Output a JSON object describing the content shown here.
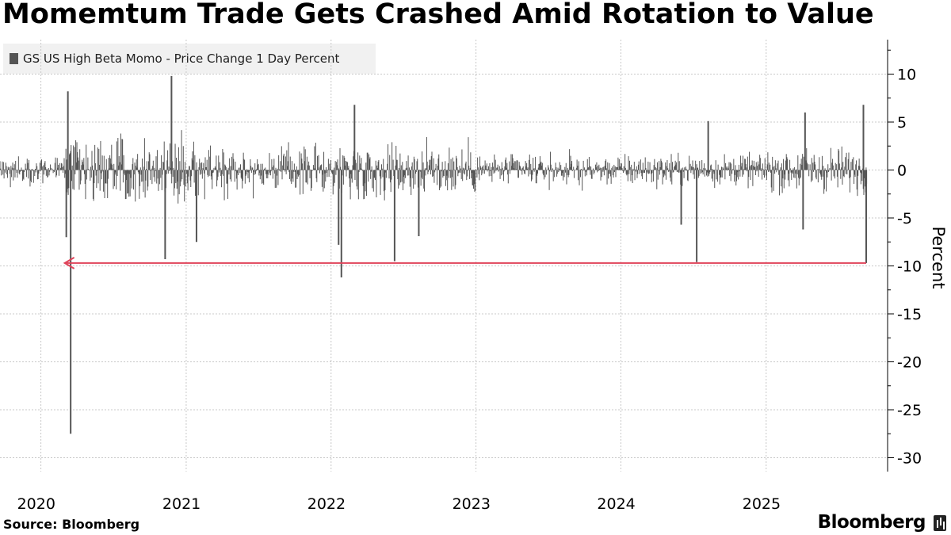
{
  "title": "Momemtum Trade Gets Crashed Amid Rotation to Value",
  "legend": {
    "label": "GS US High Beta Momo - Price Change 1 Day Percent",
    "color": "#555555"
  },
  "source": "Source: Bloomberg",
  "brand": "Bloomberg",
  "chart_data": {
    "type": "bar",
    "title": "Momemtum Trade Gets Crashed Amid Rotation to Value",
    "ylabel": "Percent",
    "ylim": [
      -31,
      13.5
    ],
    "yticks": [
      10,
      5,
      0,
      -5,
      -10,
      -15,
      -20,
      -25,
      -30
    ],
    "xlim": [
      "2019-09-20",
      "2025-09-20"
    ],
    "xticks": [
      {
        "label": "2020",
        "date": "2020-01-01"
      },
      {
        "label": "2021",
        "date": "2021-01-01"
      },
      {
        "label": "2022",
        "date": "2022-01-01"
      },
      {
        "label": "2023",
        "date": "2023-01-01"
      },
      {
        "label": "2024",
        "date": "2024-01-01"
      },
      {
        "label": "2025",
        "date": "2025-01-01"
      }
    ],
    "grid": true,
    "legend_position": "top-left",
    "colors": {
      "bars": "#555555",
      "reference_line": "#e0435a"
    },
    "notable_points": [
      {
        "date": "2020-03-16",
        "value": -27.5
      },
      {
        "date": "2020-03-09",
        "value": 8.2
      },
      {
        "date": "2020-03-05",
        "value": -7.0
      },
      {
        "date": "2020-11-09",
        "value": -9.3
      },
      {
        "date": "2020-11-25",
        "value": 9.8
      },
      {
        "date": "2021-01-27",
        "value": -7.5
      },
      {
        "date": "2022-01-27",
        "value": -11.2
      },
      {
        "date": "2022-01-20",
        "value": -7.8
      },
      {
        "date": "2022-03-01",
        "value": 6.8
      },
      {
        "date": "2022-06-10",
        "value": -9.5
      },
      {
        "date": "2022-08-10",
        "value": -6.9
      },
      {
        "date": "2024-07-10",
        "value": -9.6
      },
      {
        "date": "2024-06-01",
        "value": -5.7
      },
      {
        "date": "2024-08-08",
        "value": 5.1
      },
      {
        "date": "2025-04-04",
        "value": -6.2
      },
      {
        "date": "2025-04-09",
        "value": 6.0
      },
      {
        "date": "2025-09-03",
        "value": 6.8
      },
      {
        "date": "2025-09-10",
        "value": -9.7
      }
    ],
    "reference_line": {
      "value": -9.7,
      "from": "2025-09-10",
      "to": "2020-03-01",
      "arrow": "left"
    }
  }
}
